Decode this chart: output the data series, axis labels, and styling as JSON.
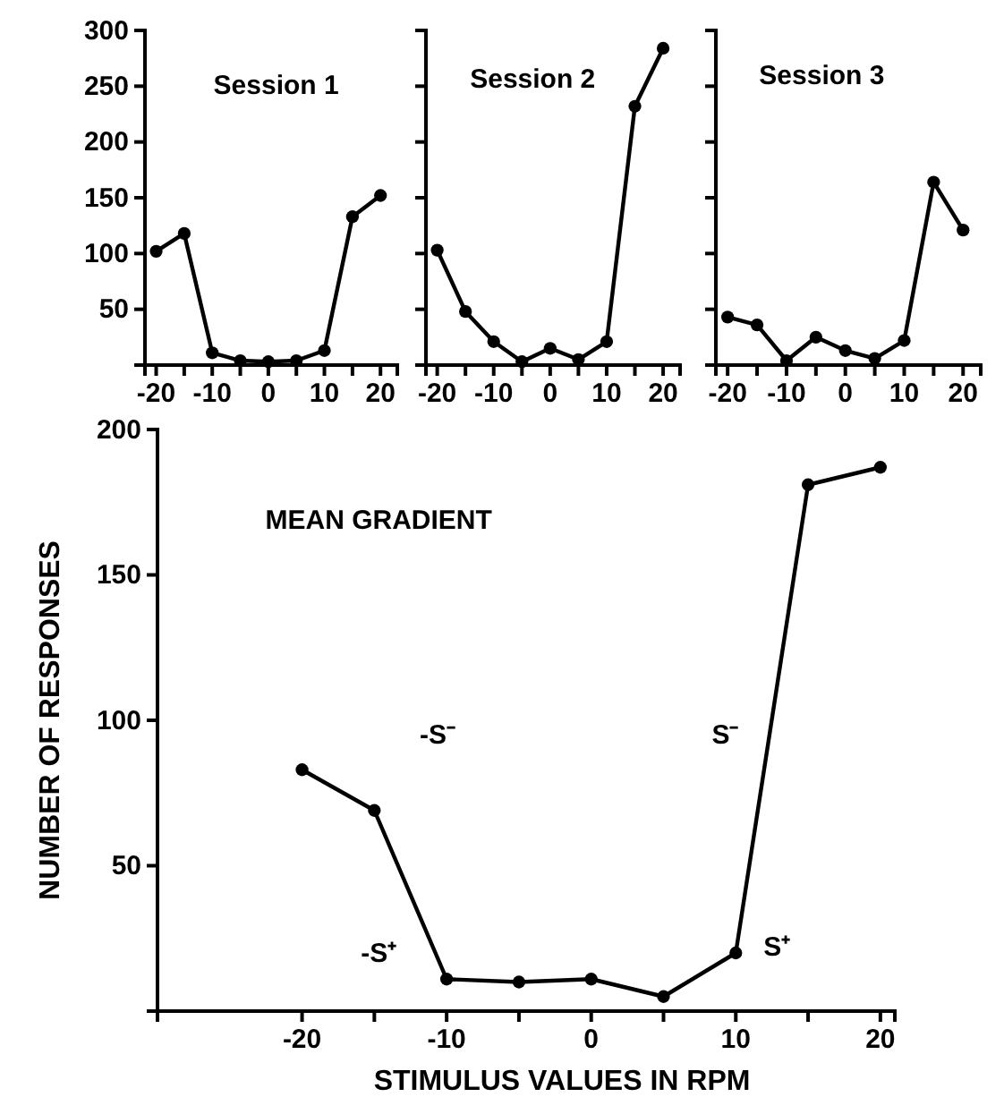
{
  "chart_data": [
    {
      "type": "line",
      "title": "Session 1",
      "x": [
        -20,
        -15,
        -10,
        -5,
        0,
        5,
        10,
        15,
        20
      ],
      "values": [
        102,
        118,
        11,
        4,
        3,
        4,
        13,
        133,
        152
      ],
      "color": "#000000",
      "marker": "circle",
      "xlim": [
        -22,
        23
      ],
      "ylim": [
        0,
        300
      ],
      "xticks": [
        -20,
        {
          "value": -15,
          "label": null
        },
        -10,
        {
          "value": -5,
          "label": null
        },
        0,
        {
          "value": 5,
          "label": null
        },
        10,
        {
          "value": 15,
          "label": null
        },
        20
      ],
      "yticks": [
        50,
        100,
        150,
        200,
        250,
        300
      ]
    },
    {
      "type": "line",
      "title": "Session 2",
      "x": [
        -20,
        -15,
        -10,
        -5,
        0,
        5,
        10,
        15,
        20
      ],
      "values": [
        103,
        48,
        21,
        3,
        15,
        5,
        21,
        232,
        284
      ],
      "color": "#000000",
      "marker": "circle",
      "xlim": [
        -22,
        23
      ],
      "ylim": [
        0,
        300
      ],
      "xticks": [
        -20,
        {
          "value": -15,
          "label": null
        },
        -10,
        {
          "value": -5,
          "label": null
        },
        0,
        {
          "value": 5,
          "label": null
        },
        10,
        {
          "value": 15,
          "label": null
        },
        20
      ],
      "yticks": [
        {
          "value": 50,
          "label": null
        },
        {
          "value": 100,
          "label": null
        },
        {
          "value": 150,
          "label": null
        },
        {
          "value": 200,
          "label": null
        },
        {
          "value": 250,
          "label": null
        },
        {
          "value": 300,
          "label": null
        }
      ],
      "tick_labels": "x"
    },
    {
      "type": "line",
      "title": "Session 3",
      "x": [
        -20,
        -15,
        -10,
        -5,
        0,
        5,
        10,
        15,
        20
      ],
      "values": [
        43,
        36,
        4,
        25,
        13,
        6,
        22,
        164,
        121
      ],
      "color": "#000000",
      "marker": "circle",
      "xlim": [
        -22,
        23
      ],
      "ylim": [
        0,
        300
      ],
      "xticks": [
        -20,
        {
          "value": -15,
          "label": null
        },
        -10,
        {
          "value": -5,
          "label": null
        },
        0,
        {
          "value": 5,
          "label": null
        },
        10,
        {
          "value": 15,
          "label": null
        },
        20
      ],
      "yticks": [
        {
          "value": 50,
          "label": null
        },
        {
          "value": 100,
          "label": null
        },
        {
          "value": 150,
          "label": null
        },
        {
          "value": 200,
          "label": null
        },
        {
          "value": 250,
          "label": null
        },
        {
          "value": 300,
          "label": null
        }
      ],
      "tick_labels": "x"
    },
    {
      "type": "line",
      "title": "MEAN GRADIENT",
      "xlabel": "STIMULUS VALUES IN RPM",
      "ylabel": "NUMBER OF RESPONSES",
      "x": [
        -20,
        -15,
        -10,
        -5,
        0,
        5,
        10,
        15,
        20
      ],
      "values": [
        83,
        69,
        11,
        10,
        11,
        5,
        20,
        181,
        187
      ],
      "color": "#000000",
      "marker": "circle",
      "xlim": [
        -30,
        21
      ],
      "ylim": [
        0,
        200
      ],
      "xticks": [
        -20,
        {
          "value": -15,
          "label": null
        },
        -10,
        {
          "value": -5,
          "label": null
        },
        0,
        {
          "value": 5,
          "label": null
        },
        10,
        {
          "value": 15,
          "label": null
        },
        20
      ],
      "yticks": [
        50,
        100,
        150,
        200
      ],
      "annotations": [
        "-S⁻",
        "S⁻",
        "-S⁺",
        "S⁺"
      ]
    }
  ]
}
